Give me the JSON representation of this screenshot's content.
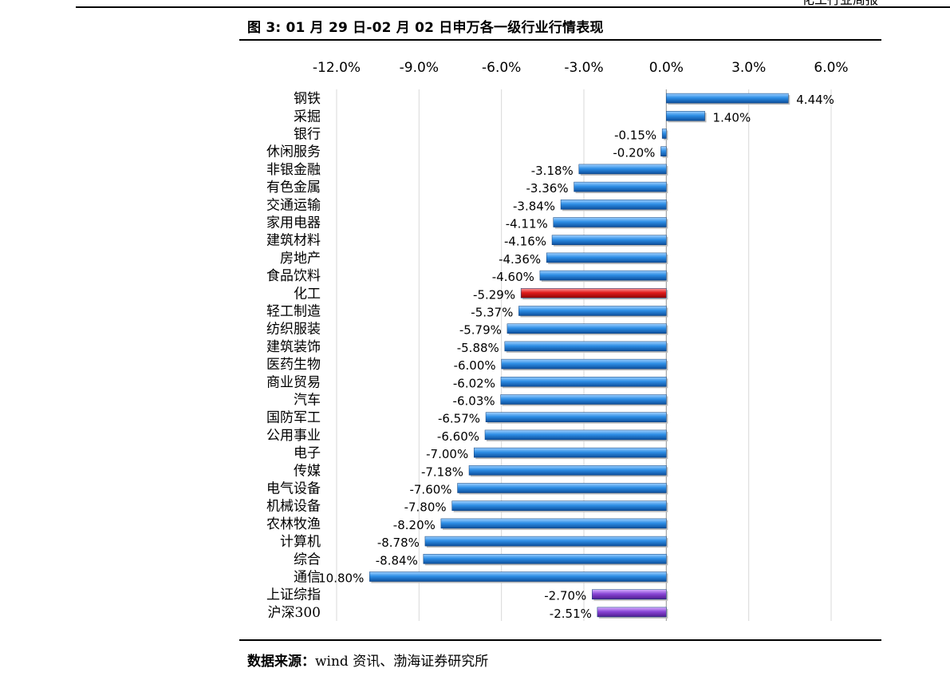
{
  "page": {
    "header_fragment": "化工行业周报",
    "figure_title": "图 3:  01 月 29 日-02 月 02 日申万各一级行业行情表现",
    "source_label": "数据来源：",
    "source_text": "wind 资讯、渤海证券研究所"
  },
  "colors": {
    "positive_bar": "#2f8fe6",
    "highlight_bar": "#e01b1b",
    "index_bar": "#8a46d6"
  },
  "chart_data": {
    "type": "bar",
    "orientation": "horizontal",
    "title": "01 月 29 日-02 月 02 日申万各一级行业行情表现",
    "xlim": [
      -12.0,
      6.0
    ],
    "x_ticks": [
      "-12.0%",
      "-9.0%",
      "-6.0%",
      "-3.0%",
      "0.0%",
      "3.0%",
      "6.0%"
    ],
    "x_tick_values": [
      -12,
      -9,
      -6,
      -3,
      0,
      3,
      6
    ],
    "grid": true,
    "legend": "none",
    "categories": [
      "钢铁",
      "采掘",
      "银行",
      "休闲服务",
      "非银金融",
      "有色金属",
      "交通运输",
      "家用电器",
      "建筑材料",
      "房地产",
      "食品饮料",
      "化工",
      "轻工制造",
      "纺织服装",
      "建筑装饰",
      "医药生物",
      "商业贸易",
      "汽车",
      "国防军工",
      "公用事业",
      "电子",
      "传媒",
      "电气设备",
      "机械设备",
      "农林牧渔",
      "计算机",
      "综合",
      "通信",
      "上证综指",
      "沪深300"
    ],
    "values": [
      4.44,
      1.4,
      -0.15,
      -0.2,
      -3.18,
      -3.36,
      -3.84,
      -4.11,
      -4.16,
      -4.36,
      -4.6,
      -5.29,
      -5.37,
      -5.79,
      -5.88,
      -6.0,
      -6.02,
      -6.03,
      -6.57,
      -6.6,
      -7.0,
      -7.18,
      -7.6,
      -7.8,
      -8.2,
      -8.78,
      -8.84,
      -10.8,
      -2.7,
      -2.51
    ],
    "value_labels": [
      "4.44%",
      "1.40%",
      "-0.15%",
      "-0.20%",
      "-3.18%",
      "-3.36%",
      "-3.84%",
      "-4.11%",
      "-4.16%",
      "-4.36%",
      "-4.60%",
      "-5.29%",
      "-5.37%",
      "-5.79%",
      "-5.88%",
      "-6.00%",
      "-6.02%",
      "-6.03%",
      "-6.57%",
      "-6.60%",
      "-7.00%",
      "-7.18%",
      "-7.60%",
      "-7.80%",
      "-8.20%",
      "-8.78%",
      "-8.84%",
      "-10.80%",
      "-2.70%",
      "-2.51%"
    ],
    "bar_groups": [
      "industry",
      "industry",
      "industry",
      "industry",
      "industry",
      "industry",
      "industry",
      "industry",
      "industry",
      "industry",
      "industry",
      "highlight",
      "industry",
      "industry",
      "industry",
      "industry",
      "industry",
      "industry",
      "industry",
      "industry",
      "industry",
      "industry",
      "industry",
      "industry",
      "industry",
      "industry",
      "industry",
      "industry",
      "index",
      "index"
    ]
  }
}
